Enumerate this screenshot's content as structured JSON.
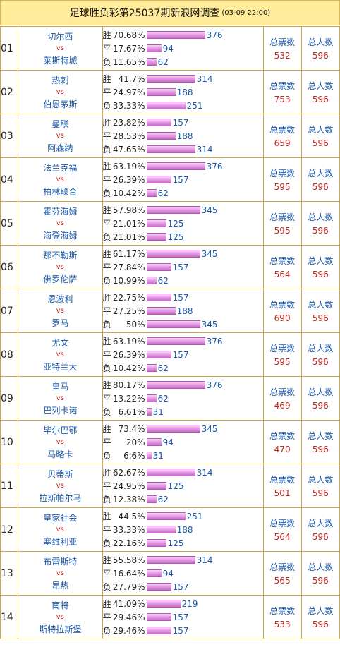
{
  "header": {
    "title": "足球胜负彩第25037期新浪网调查",
    "date": "(03-09 22:00)"
  },
  "labels": {
    "win": "胜",
    "draw": "平",
    "loss": "负",
    "vs": "vs",
    "total_votes": "总票数",
    "total_people": "总人数"
  },
  "matches": [
    {
      "no": "01",
      "home": "切尔西",
      "away": "莱斯特城",
      "win_pct": "70.68%",
      "win_cnt": "376",
      "draw_pct": "17.67%",
      "draw_cnt": "94",
      "loss_pct": "11.65%",
      "loss_cnt": "62",
      "votes": "532",
      "people": "596"
    },
    {
      "no": "02",
      "home": "热刺",
      "away": "伯恩茅斯",
      "win_pct": "41.7%",
      "win_cnt": "314",
      "draw_pct": "24.97%",
      "draw_cnt": "188",
      "loss_pct": "33.33%",
      "loss_cnt": "251",
      "votes": "753",
      "people": "596"
    },
    {
      "no": "03",
      "home": "曼联",
      "away": "阿森纳",
      "win_pct": "23.82%",
      "win_cnt": "157",
      "draw_pct": "28.53%",
      "draw_cnt": "188",
      "loss_pct": "47.65%",
      "loss_cnt": "314",
      "votes": "659",
      "people": "596"
    },
    {
      "no": "04",
      "home": "法兰克福",
      "away": "柏林联合",
      "win_pct": "63.19%",
      "win_cnt": "376",
      "draw_pct": "26.39%",
      "draw_cnt": "157",
      "loss_pct": "10.42%",
      "loss_cnt": "62",
      "votes": "595",
      "people": "596"
    },
    {
      "no": "05",
      "home": "霍芬海姆",
      "away": "海登海姆",
      "win_pct": "57.98%",
      "win_cnt": "345",
      "draw_pct": "21.01%",
      "draw_cnt": "125",
      "loss_pct": "21.01%",
      "loss_cnt": "125",
      "votes": "595",
      "people": "596"
    },
    {
      "no": "06",
      "home": "那不勒斯",
      "away": "佛罗伦萨",
      "win_pct": "61.17%",
      "win_cnt": "345",
      "draw_pct": "27.84%",
      "draw_cnt": "157",
      "loss_pct": "10.99%",
      "loss_cnt": "62",
      "votes": "564",
      "people": "596"
    },
    {
      "no": "07",
      "home": "恩波利",
      "away": "罗马",
      "win_pct": "22.75%",
      "win_cnt": "157",
      "draw_pct": "27.25%",
      "draw_cnt": "188",
      "loss_pct": "50%",
      "loss_cnt": "345",
      "votes": "690",
      "people": "596"
    },
    {
      "no": "08",
      "home": "尤文",
      "away": "亚特兰大",
      "win_pct": "63.19%",
      "win_cnt": "376",
      "draw_pct": "26.39%",
      "draw_cnt": "157",
      "loss_pct": "10.42%",
      "loss_cnt": "62",
      "votes": "595",
      "people": "596"
    },
    {
      "no": "09",
      "home": "皇马",
      "away": "巴列卡诺",
      "win_pct": "80.17%",
      "win_cnt": "376",
      "draw_pct": "13.22%",
      "draw_cnt": "62",
      "loss_pct": "6.61%",
      "loss_cnt": "31",
      "votes": "469",
      "people": "596"
    },
    {
      "no": "10",
      "home": "毕尔巴鄂",
      "away": "马略卡",
      "win_pct": "73.4%",
      "win_cnt": "345",
      "draw_pct": "20%",
      "draw_cnt": "94",
      "loss_pct": "6.6%",
      "loss_cnt": "31",
      "votes": "470",
      "people": "596"
    },
    {
      "no": "11",
      "home": "贝蒂斯",
      "away": "拉斯帕尔马",
      "win_pct": "62.67%",
      "win_cnt": "314",
      "draw_pct": "24.95%",
      "draw_cnt": "125",
      "loss_pct": "12.38%",
      "loss_cnt": "62",
      "votes": "501",
      "people": "596"
    },
    {
      "no": "12",
      "home": "皇家社会",
      "away": "塞维利亚",
      "win_pct": "44.5%",
      "win_cnt": "251",
      "draw_pct": "33.33%",
      "draw_cnt": "188",
      "loss_pct": "22.16%",
      "loss_cnt": "125",
      "votes": "564",
      "people": "596"
    },
    {
      "no": "13",
      "home": "布雷斯特",
      "away": "昂热",
      "win_pct": "55.58%",
      "win_cnt": "314",
      "draw_pct": "16.64%",
      "draw_cnt": "94",
      "loss_pct": "27.79%",
      "loss_cnt": "157",
      "votes": "565",
      "people": "596"
    },
    {
      "no": "14",
      "home": "南特",
      "away": "斯特拉斯堡",
      "win_pct": "41.09%",
      "win_cnt": "219",
      "draw_pct": "29.46%",
      "draw_cnt": "157",
      "loss_pct": "29.46%",
      "loss_cnt": "157",
      "votes": "533",
      "people": "596"
    }
  ]
}
